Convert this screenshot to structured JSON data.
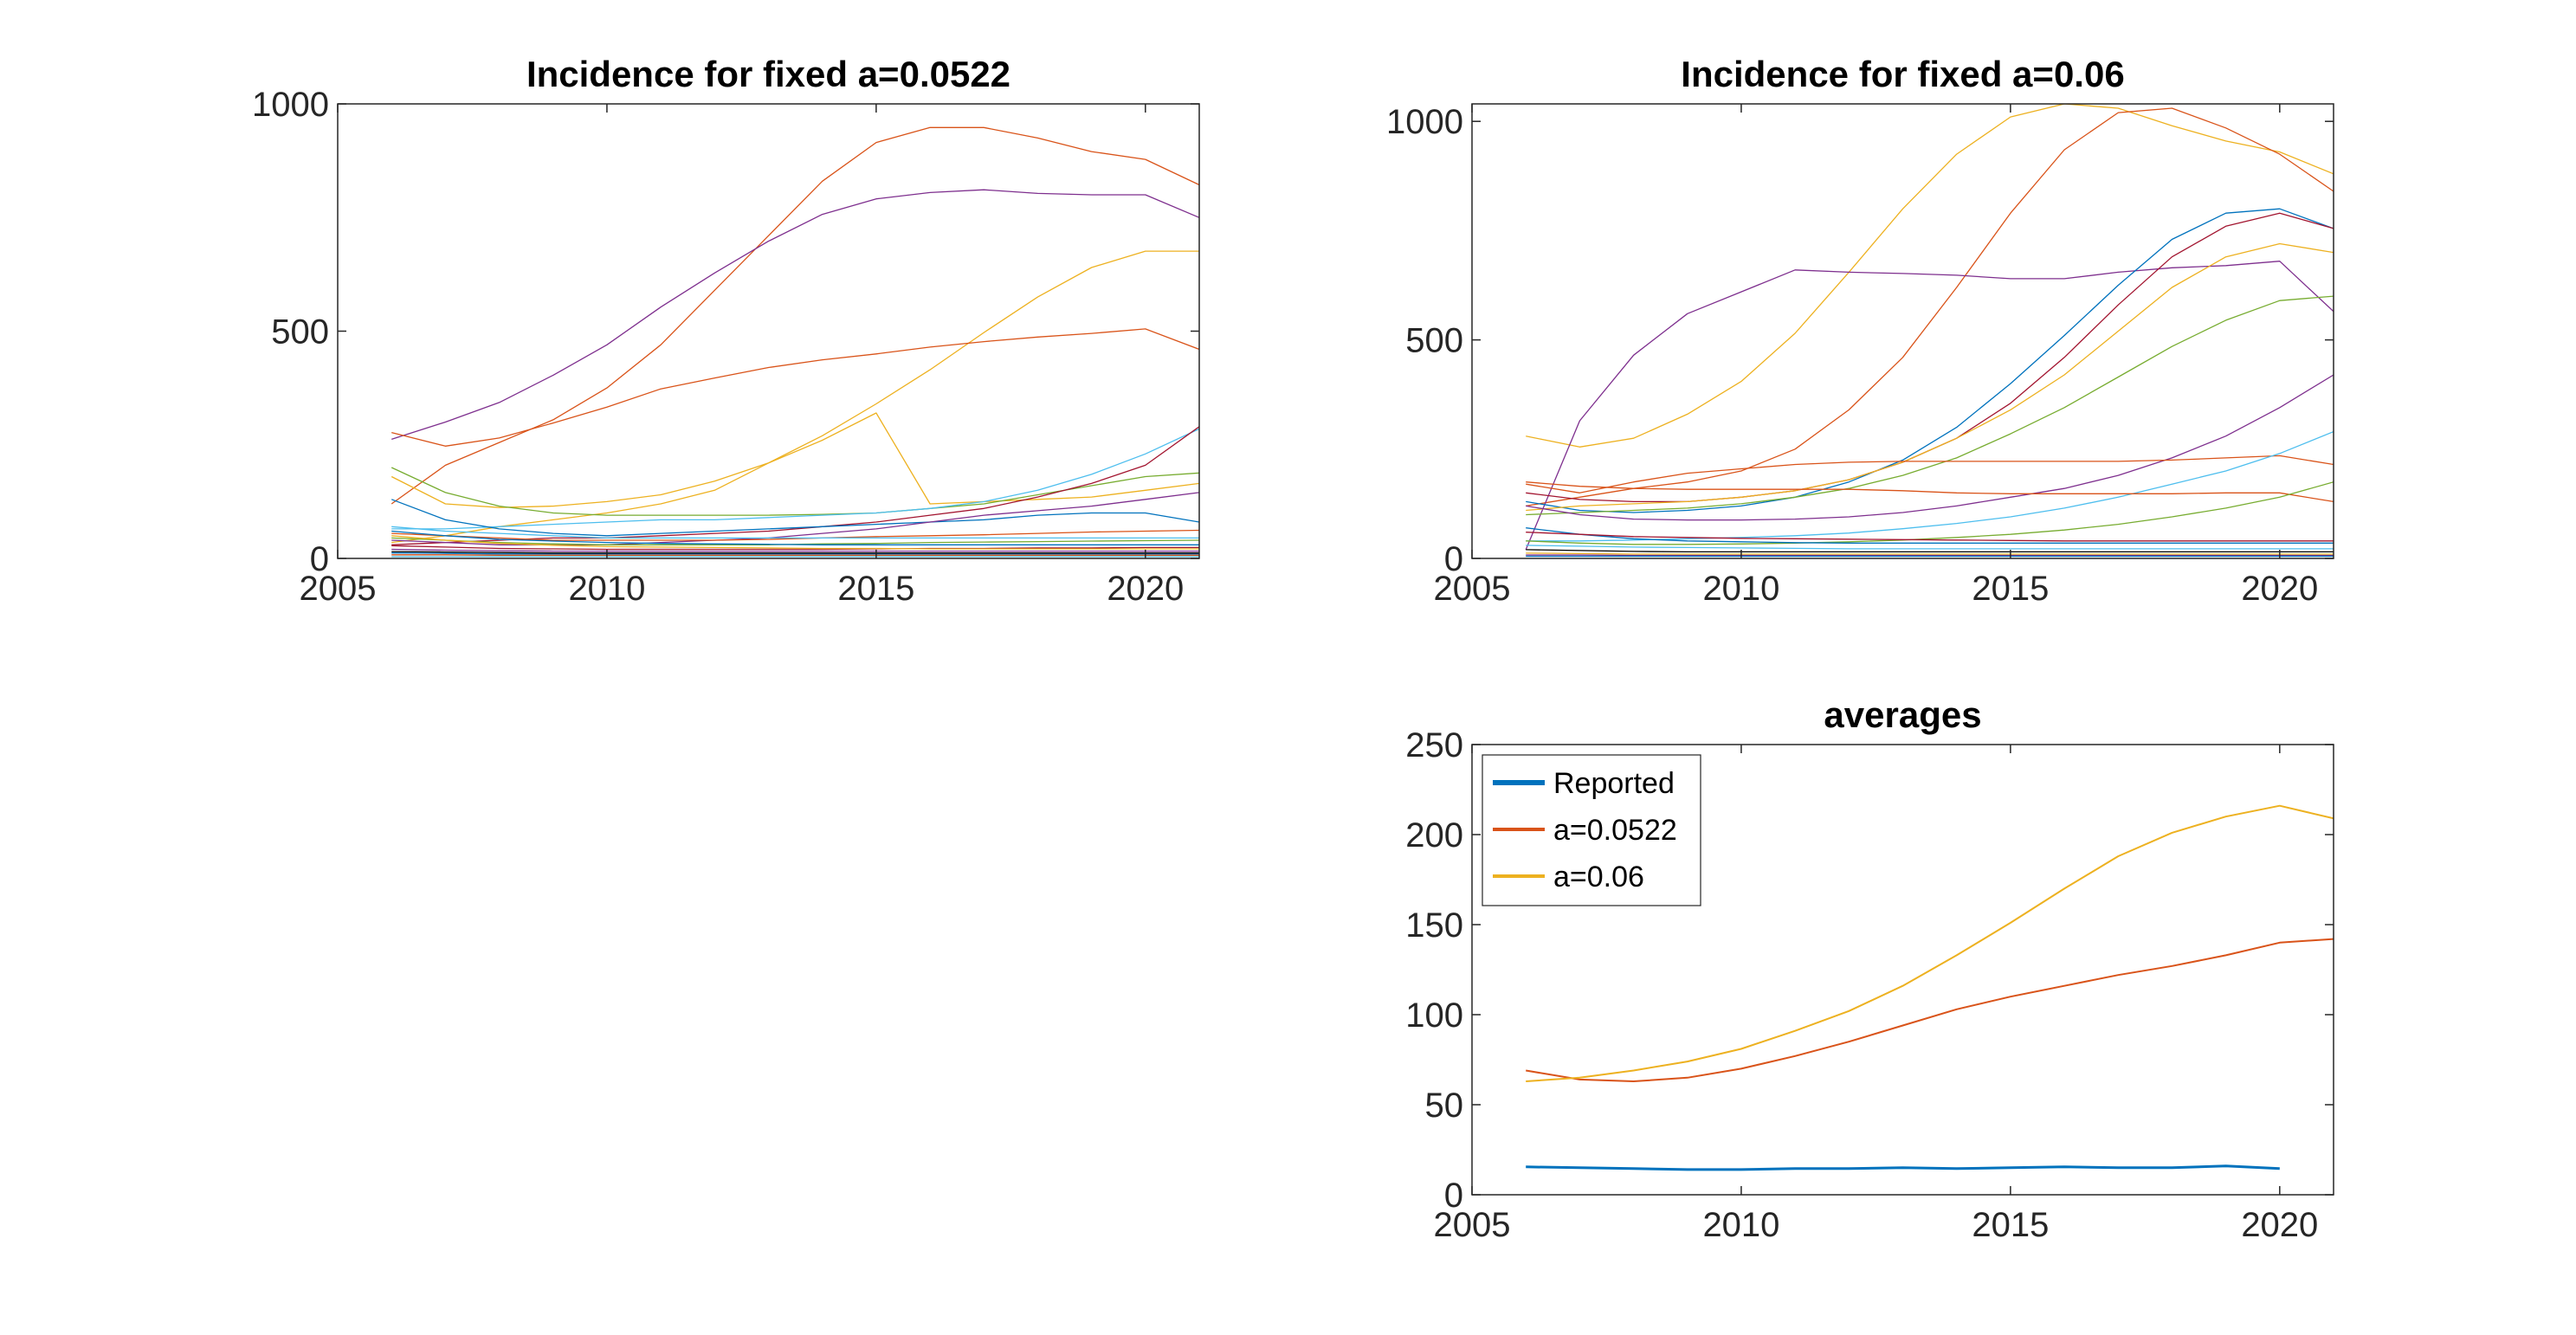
{
  "colors": {
    "c1": "#0072BD",
    "c2": "#D95319",
    "c3": "#EDB120",
    "c4": "#7E2F8E",
    "c5": "#77AC30",
    "c6": "#4DBEEE",
    "c7": "#A2142F",
    "axis": "#262626"
  },
  "chart_data": [
    {
      "id": "panel1",
      "type": "line",
      "title": "Incidence for fixed a=0.0522",
      "xlim": [
        2005,
        2021
      ],
      "ylim": [
        0,
        1000
      ],
      "xticks": [
        2005,
        2010,
        2015,
        2020
      ],
      "yticks": [
        0,
        500,
        1000
      ],
      "x": [
        2006,
        2007,
        2008,
        2009,
        2010,
        2011,
        2012,
        2013,
        2014,
        2015,
        2016,
        2017,
        2018,
        2019,
        2020,
        2021
      ],
      "series": [
        {
          "color": "#D95319",
          "values": [
            120,
            205,
            255,
            305,
            375,
            470,
            590,
            710,
            830,
            915,
            948,
            948,
            925,
            895,
            878,
            822
          ]
        },
        {
          "color": "#7E2F8E",
          "values": [
            262,
            300,
            343,
            403,
            470,
            553,
            628,
            698,
            757,
            791,
            805,
            811,
            803,
            800,
            800,
            750
          ]
        },
        {
          "color": "#EDB120",
          "values": [
            35,
            50,
            70,
            85,
            100,
            120,
            150,
            210,
            270,
            340,
            415,
            497,
            575,
            640,
            676,
            676
          ]
        },
        {
          "color": "#D95319",
          "values": [
            277,
            247,
            265,
            298,
            333,
            373,
            397,
            420,
            437,
            450,
            465,
            477,
            487,
            495,
            505,
            460
          ]
        },
        {
          "color": "#EDB120",
          "values": [
            180,
            120,
            112,
            115,
            125,
            140,
            170,
            210,
            260,
            320,
            120,
            125,
            130,
            135,
            150,
            165
          ]
        },
        {
          "color": "#77AC30",
          "values": [
            200,
            145,
            115,
            100,
            95,
            95,
            95,
            95,
            97,
            100,
            110,
            120,
            140,
            160,
            180,
            188
          ]
        },
        {
          "color": "#4DBEEE",
          "values": [
            65,
            65,
            70,
            75,
            80,
            85,
            85,
            90,
            95,
            100,
            110,
            125,
            150,
            185,
            230,
            285
          ]
        },
        {
          "color": "#A2142F",
          "values": [
            30,
            35,
            40,
            45,
            45,
            50,
            55,
            60,
            70,
            80,
            95,
            110,
            135,
            165,
            205,
            290
          ]
        },
        {
          "color": "#0072BD",
          "values": [
            130,
            85,
            65,
            55,
            50,
            55,
            60,
            65,
            70,
            75,
            80,
            85,
            95,
            100,
            100,
            80
          ]
        },
        {
          "color": "#7E2F8E",
          "values": [
            40,
            35,
            30,
            30,
            30,
            35,
            40,
            45,
            55,
            65,
            80,
            95,
            105,
            115,
            130,
            145
          ]
        },
        {
          "color": "#D95319",
          "values": [
            55,
            50,
            45,
            40,
            40,
            40,
            40,
            42,
            45,
            48,
            50,
            52,
            55,
            58,
            60,
            62
          ]
        },
        {
          "color": "#4DBEEE",
          "values": [
            70,
            60,
            55,
            50,
            45,
            45,
            45,
            45,
            45,
            45,
            45,
            45,
            45,
            45,
            45,
            45
          ]
        },
        {
          "color": "#77AC30",
          "values": [
            45,
            40,
            35,
            32,
            30,
            30,
            30,
            30,
            32,
            33,
            35,
            36,
            37,
            38,
            39,
            40
          ]
        },
        {
          "color": "#0072BD",
          "values": [
            60,
            50,
            42,
            38,
            35,
            33,
            32,
            31,
            30,
            30,
            30,
            30,
            30,
            30,
            30,
            30
          ]
        },
        {
          "color": "#A2142F",
          "values": [
            28,
            25,
            22,
            21,
            20,
            20,
            20,
            20,
            20,
            21,
            22,
            22,
            23,
            23,
            24,
            24
          ]
        },
        {
          "color": "#EDB120",
          "values": [
            50,
            40,
            33,
            29,
            26,
            25,
            24,
            23,
            22,
            22,
            21,
            21,
            21,
            21,
            21,
            21
          ]
        },
        {
          "color": "#7E2F8E",
          "values": [
            20,
            18,
            17,
            16,
            16,
            16,
            16,
            16,
            16,
            16,
            16,
            16,
            16,
            16,
            16,
            16
          ]
        },
        {
          "color": "#0072BD",
          "values": [
            12,
            11,
            10,
            10,
            10,
            10,
            10,
            10,
            10,
            10,
            10,
            10,
            10,
            10,
            10,
            10
          ]
        },
        {
          "color": "#000000",
          "values": [
            15,
            14,
            13,
            12,
            12,
            12,
            12,
            12,
            12,
            12,
            12,
            12,
            12,
            12,
            12,
            12
          ]
        },
        {
          "color": "#D95319",
          "values": [
            8,
            8,
            7,
            7,
            7,
            7,
            7,
            7,
            7,
            7,
            7,
            7,
            7,
            7,
            7,
            7
          ]
        },
        {
          "color": "#4DBEEE",
          "values": [
            4,
            4,
            4,
            4,
            4,
            4,
            4,
            4,
            4,
            4,
            4,
            4,
            4,
            4,
            4,
            4
          ]
        }
      ]
    },
    {
      "id": "panel2",
      "type": "line",
      "title": "Incidence for fixed a=0.06",
      "xlim": [
        2005,
        2021
      ],
      "ylim": [
        0,
        1040
      ],
      "xticks": [
        2005,
        2010,
        2015,
        2020
      ],
      "yticks": [
        0,
        500,
        1000
      ],
      "x": [
        2006,
        2007,
        2008,
        2009,
        2010,
        2011,
        2012,
        2013,
        2014,
        2015,
        2016,
        2017,
        2018,
        2019,
        2020,
        2021
      ],
      "series": [
        {
          "color": "#EDB120",
          "values": [
            280,
            255,
            275,
            330,
            405,
            515,
            655,
            800,
            925,
            1010,
            1040,
            1030,
            990,
            955,
            930,
            880
          ]
        },
        {
          "color": "#D95319",
          "values": [
            120,
            140,
            160,
            175,
            200,
            250,
            340,
            460,
            620,
            790,
            935,
            1020,
            1030,
            985,
            925,
            840
          ]
        },
        {
          "color": "#7E2F8E",
          "values": [
            20,
            315,
            465,
            560,
            610,
            660,
            655,
            652,
            648,
            640,
            640,
            655,
            665,
            670,
            680,
            565
          ]
        },
        {
          "color": "#0072BD",
          "values": [
            130,
            110,
            105,
            110,
            120,
            140,
            175,
            225,
            300,
            400,
            510,
            625,
            730,
            790,
            800,
            755
          ]
        },
        {
          "color": "#A2142F",
          "values": [
            150,
            135,
            130,
            130,
            140,
            155,
            180,
            220,
            275,
            355,
            460,
            580,
            690,
            760,
            790,
            755
          ]
        },
        {
          "color": "#EDB120",
          "values": [
            110,
            120,
            125,
            130,
            140,
            155,
            180,
            220,
            275,
            340,
            420,
            520,
            620,
            690,
            720,
            700
          ]
        },
        {
          "color": "#77AC30",
          "values": [
            100,
            105,
            110,
            115,
            125,
            140,
            160,
            190,
            230,
            285,
            345,
            415,
            485,
            545,
            590,
            600
          ]
        },
        {
          "color": "#7E2F8E",
          "values": [
            120,
            100,
            90,
            88,
            88,
            90,
            95,
            105,
            120,
            140,
            160,
            190,
            230,
            280,
            345,
            420
          ]
        },
        {
          "color": "#D95319",
          "values": [
            170,
            150,
            175,
            195,
            205,
            215,
            220,
            222,
            222,
            222,
            222,
            222,
            225,
            230,
            235,
            215
          ]
        },
        {
          "color": "#4DBEEE",
          "values": [
            40,
            40,
            42,
            45,
            48,
            52,
            58,
            68,
            80,
            95,
            115,
            140,
            170,
            200,
            240,
            290
          ]
        },
        {
          "color": "#D95319",
          "values": [
            175,
            165,
            160,
            158,
            158,
            158,
            158,
            155,
            150,
            148,
            148,
            148,
            148,
            150,
            150,
            130
          ]
        },
        {
          "color": "#77AC30",
          "values": [
            40,
            35,
            32,
            32,
            33,
            35,
            38,
            42,
            48,
            55,
            65,
            78,
            95,
            115,
            140,
            175
          ]
        },
        {
          "color": "#0072BD",
          "values": [
            70,
            55,
            45,
            40,
            38,
            36,
            35,
            35,
            35,
            35,
            35,
            35,
            35,
            35,
            35,
            35
          ]
        },
        {
          "color": "#A2142F",
          "values": [
            60,
            55,
            50,
            48,
            46,
            45,
            44,
            43,
            42,
            41,
            40,
            40,
            40,
            40,
            40,
            40
          ]
        },
        {
          "color": "#4DBEEE",
          "values": [
            30,
            28,
            26,
            25,
            24,
            23,
            22,
            22,
            22,
            22,
            22,
            22,
            22,
            22,
            22,
            22
          ]
        },
        {
          "color": "#000000",
          "values": [
            20,
            18,
            16,
            15,
            15,
            15,
            15,
            15,
            15,
            15,
            15,
            15,
            15,
            15,
            15,
            15
          ]
        },
        {
          "color": "#EDB120",
          "values": [
            12,
            11,
            10,
            10,
            10,
            10,
            10,
            10,
            10,
            10,
            10,
            10,
            10,
            10,
            10,
            10
          ]
        },
        {
          "color": "#7E2F8E",
          "values": [
            8,
            8,
            7,
            7,
            7,
            7,
            7,
            7,
            7,
            7,
            7,
            7,
            7,
            7,
            7,
            7
          ]
        },
        {
          "color": "#0072BD",
          "values": [
            5,
            5,
            5,
            5,
            5,
            5,
            5,
            5,
            5,
            5,
            5,
            5,
            5,
            5,
            5,
            5
          ]
        }
      ]
    },
    {
      "id": "panel3",
      "type": "line",
      "title": "averages",
      "xlim": [
        2005,
        2021
      ],
      "ylim": [
        0,
        250
      ],
      "xticks": [
        2005,
        2010,
        2015,
        2020
      ],
      "yticks": [
        0,
        50,
        100,
        150,
        200,
        250
      ],
      "legend_position": "top-left",
      "x": [
        2006,
        2007,
        2008,
        2009,
        2010,
        2011,
        2012,
        2013,
        2014,
        2015,
        2016,
        2017,
        2018,
        2019,
        2020,
        2021
      ],
      "series": [
        {
          "name": "Reported",
          "color": "#0072BD",
          "width": 3,
          "values": [
            15.5,
            15,
            14.5,
            14,
            14,
            14.5,
            14.5,
            15,
            14.5,
            15,
            15.5,
            15,
            15,
            16,
            14.5,
            null
          ]
        },
        {
          "name": "a=0.0522",
          "color": "#D95319",
          "width": 2,
          "values": [
            69,
            64,
            63,
            65,
            70,
            77,
            85,
            94,
            103,
            110,
            116,
            122,
            127,
            133,
            140,
            142
          ]
        },
        {
          "name": "a=0.06",
          "color": "#EDB120",
          "width": 2,
          "values": [
            63,
            65,
            69,
            74,
            81,
            91,
            102,
            116,
            133,
            151,
            170,
            188,
            201,
            210,
            216,
            209
          ]
        }
      ]
    }
  ]
}
